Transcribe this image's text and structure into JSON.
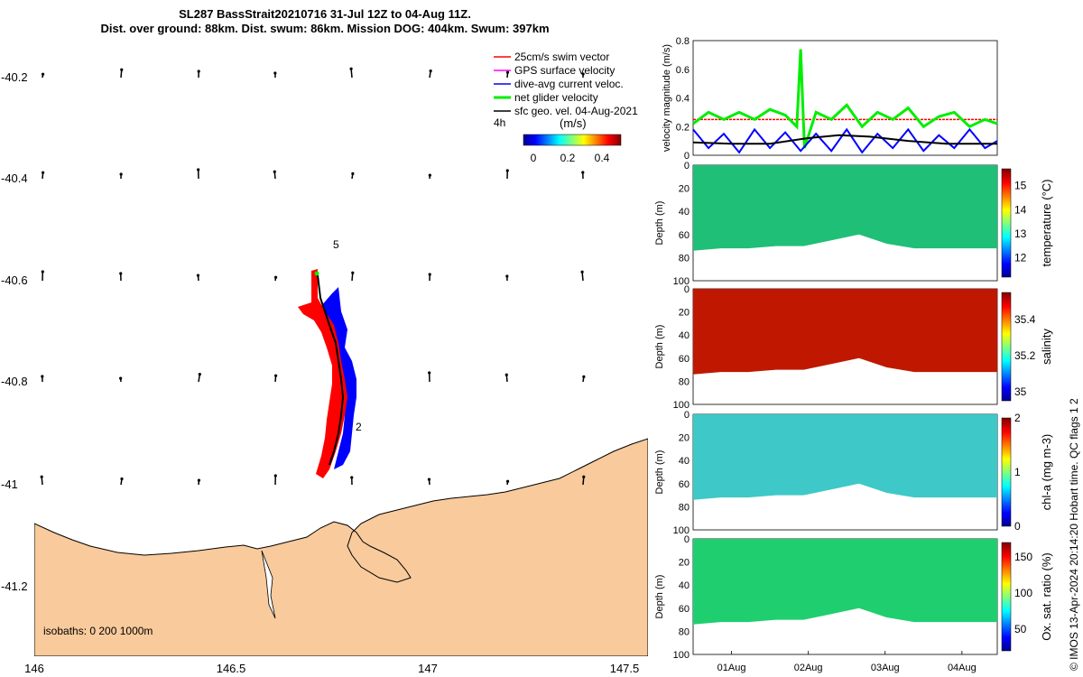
{
  "title_line1": "SL287 BassStrait20210716 31-Jul 12Z to 04-Aug 11Z.",
  "title_line2": "Dist. over ground: 88km. Dist. swum: 86km. Mission DOG: 404km. Swum: 397km",
  "credit": "© IMOS 13-Apr-2024 20:14:20 Hobart time. QC flags 1  2",
  "map": {
    "lon_ticks": [
      "146",
      "146.5",
      "147",
      "147.5"
    ],
    "lat_ticks": [
      "-40.2",
      "-40.4",
      "-40.6",
      "-40.8",
      "-41",
      "-41.2"
    ],
    "isobaths_label": "isobaths: 0   200  1000m",
    "day_labels": [
      "5",
      "2"
    ],
    "legend": [
      {
        "label": "25cm/s swim vector",
        "color": "#ff0000"
      },
      {
        "label": "GPS surface velocity",
        "color": "#ff00ff"
      },
      {
        "label": "dive-avg current veloc.",
        "color": "#0000ff"
      },
      {
        "label": "net glider velocity",
        "color": "#00ee00"
      },
      {
        "label": "sfc geo. vel. 04-Aug-2021",
        "color": "#000000"
      }
    ],
    "legend_4h": "4h",
    "colorbar_unit": "(m/s)",
    "colorbar_ticks": [
      "0",
      "0.2",
      "0.4"
    ],
    "land_color": "#f8ca9c",
    "track_colors": {
      "glider": "#ff0000",
      "current": "#0000ff"
    }
  },
  "chart_data": [
    {
      "type": "line",
      "ylabel": "velocity magnitude (m/s)",
      "ylim": [
        0,
        0.8
      ],
      "yticks": [
        "0",
        "0.2",
        "0.4",
        "0.6",
        "0.8"
      ],
      "x_range_days": [
        31.5,
        35.46
      ],
      "series": [
        {
          "color": "#ff0000",
          "values": [
            0.25,
            0.25
          ]
        },
        {
          "color": "#00ee00",
          "x": [
            31.5,
            31.7,
            31.9,
            32.1,
            32.3,
            32.5,
            32.7,
            32.85,
            32.9,
            32.95,
            33.1,
            33.3,
            33.5,
            33.7,
            33.9,
            34.1,
            34.3,
            34.5,
            34.7,
            34.9,
            35.1,
            35.3,
            35.46
          ],
          "values": [
            0.22,
            0.3,
            0.25,
            0.3,
            0.25,
            0.32,
            0.28,
            0.2,
            0.74,
            0.05,
            0.3,
            0.25,
            0.35,
            0.2,
            0.3,
            0.25,
            0.33,
            0.2,
            0.27,
            0.3,
            0.2,
            0.25,
            0.22
          ]
        },
        {
          "color": "#0000ff",
          "x": [
            31.5,
            31.7,
            31.9,
            32.1,
            32.3,
            32.5,
            32.7,
            32.9,
            33.1,
            33.3,
            33.5,
            33.7,
            33.9,
            34.1,
            34.3,
            34.5,
            34.7,
            34.9,
            35.1,
            35.3,
            35.46
          ],
          "values": [
            0.18,
            0.05,
            0.15,
            0.02,
            0.18,
            0.05,
            0.16,
            0.03,
            0.15,
            0.03,
            0.18,
            0.02,
            0.15,
            0.05,
            0.18,
            0.03,
            0.14,
            0.05,
            0.18,
            0.05,
            0.1
          ]
        },
        {
          "color": "#000000",
          "x": [
            31.5,
            32.0,
            32.5,
            33.0,
            33.4,
            33.8,
            34.3,
            34.8,
            35.46
          ],
          "values": [
            0.09,
            0.08,
            0.08,
            0.12,
            0.14,
            0.13,
            0.1,
            0.08,
            0.08
          ]
        }
      ]
    },
    {
      "type": "heatmap",
      "ylabel": "Depth (m)",
      "ylim": [
        0,
        100
      ],
      "yticks": [
        "0",
        "20",
        "40",
        "60",
        "80",
        "100"
      ],
      "colorbar_label": "temperature (°C)",
      "colorbar_ticks": [
        "12",
        "13",
        "14",
        "15"
      ],
      "clim": [
        11.2,
        15.7
      ],
      "fill_color": "#1fbf78",
      "bottom_depth": [
        74,
        72,
        72,
        70,
        70,
        65,
        60,
        68,
        72,
        72,
        72,
        72
      ]
    },
    {
      "type": "heatmap",
      "ylabel": "Depth (m)",
      "ylim": [
        0,
        100
      ],
      "yticks": [
        "0",
        "20",
        "40",
        "60",
        "80",
        "100"
      ],
      "colorbar_label": "salinity",
      "colorbar_ticks": [
        "35",
        "35.2",
        "35.4"
      ],
      "clim": [
        34.95,
        35.55
      ],
      "fill_color": "#c01800",
      "bottom_depth": [
        74,
        72,
        72,
        70,
        70,
        65,
        60,
        68,
        72,
        72,
        72,
        72
      ]
    },
    {
      "type": "heatmap",
      "ylabel": "Depth (m)",
      "ylim": [
        0,
        100
      ],
      "yticks": [
        "0",
        "20",
        "40",
        "60",
        "80",
        "100"
      ],
      "colorbar_label": "chl-a (mg m-3)",
      "colorbar_ticks": [
        "0",
        "1",
        "2"
      ],
      "clim": [
        0,
        2
      ],
      "fill_color": "#3ec8c8",
      "bottom_depth": [
        74,
        72,
        72,
        70,
        70,
        65,
        60,
        68,
        72,
        72,
        72,
        72
      ]
    },
    {
      "type": "heatmap",
      "ylabel": "Depth (m)",
      "ylim": [
        0,
        100
      ],
      "yticks": [
        "0",
        "20",
        "40",
        "60",
        "80",
        "100"
      ],
      "colorbar_label": "Ox. sat. ratio (%)",
      "colorbar_ticks": [
        "50",
        "100",
        "150"
      ],
      "clim": [
        20,
        170
      ],
      "fill_color": "#1fcf6f",
      "bottom_depth": [
        74,
        72,
        72,
        70,
        70,
        65,
        60,
        68,
        72,
        72,
        72,
        72
      ]
    }
  ],
  "time_axis": {
    "labels": [
      "01Aug",
      "02Aug",
      "03Aug",
      "04Aug"
    ]
  }
}
